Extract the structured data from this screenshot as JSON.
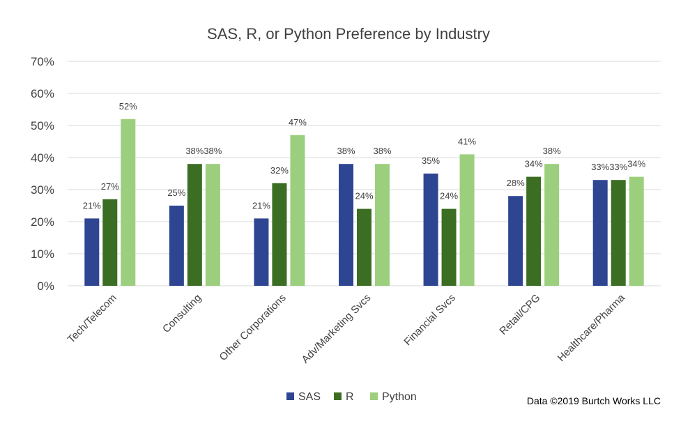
{
  "chart_data": {
    "type": "bar",
    "title": "SAS, R, or Python Preference by Industry",
    "categories": [
      "Tech/Telecom",
      "Consulting",
      "Other Corporations",
      "Adv/Marketing Svcs",
      "Financial Svcs",
      "Retail/CPG",
      "Healthcare/Pharma"
    ],
    "series": [
      {
        "name": "SAS",
        "color": "#2e4591",
        "values": [
          21,
          25,
          21,
          38,
          35,
          28,
          33
        ]
      },
      {
        "name": "R",
        "color": "#3b6e22",
        "values": [
          27,
          38,
          32,
          24,
          24,
          34,
          33
        ]
      },
      {
        "name": "Python",
        "color": "#9ccf7d",
        "values": [
          52,
          38,
          47,
          38,
          41,
          38,
          34
        ]
      }
    ],
    "value_suffix": "%",
    "ylim": [
      0,
      70
    ],
    "yticks": [
      "0%",
      "10%",
      "20%",
      "30%",
      "40%",
      "50%",
      "60%",
      "70%"
    ],
    "grid": true,
    "legend_position": "bottom",
    "xlabel": "",
    "ylabel": ""
  },
  "footer": {
    "credit": "Data ©2019 Burtch Works LLC"
  },
  "colors": {
    "gridline": "#d9d9d9",
    "text": "#404040"
  }
}
